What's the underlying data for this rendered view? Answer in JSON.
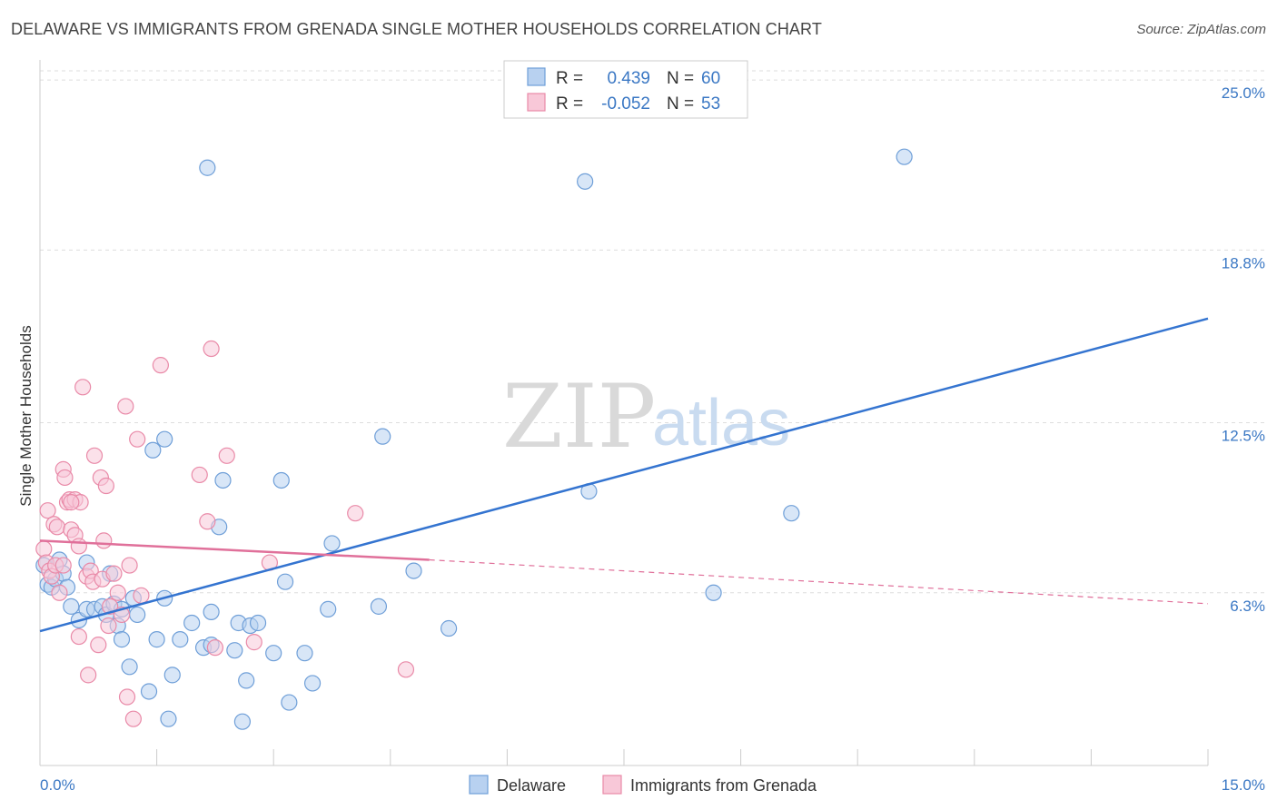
{
  "header": {
    "title": "DELAWARE VS IMMIGRANTS FROM GRENADA SINGLE MOTHER HOUSEHOLDS CORRELATION CHART",
    "source": "Source: ZipAtlas.com"
  },
  "watermark": {
    "zip": "ZIP",
    "atlas": "atlas"
  },
  "colors": {
    "delaware_fill": "#b8d1f0",
    "delaware_stroke": "#6f9fd8",
    "delaware_line": "#3474d0",
    "grenada_fill": "#f8c8d8",
    "grenada_stroke": "#e98aa8",
    "grenada_line": "#e0709a",
    "tick_color": "#3b78c4",
    "grid": "#dddddd"
  },
  "legend": {
    "rows": [
      {
        "r_label": "R =",
        "r_value": "0.439",
        "n_label": "N =",
        "n_value": "60"
      },
      {
        "r_label": "R =",
        "r_value": "-0.052",
        "n_label": "N =",
        "n_value": "53"
      }
    ]
  },
  "bottom_legend": [
    "Delaware",
    "Immigrants from Grenada"
  ],
  "chart_data": {
    "type": "scatter",
    "title": "DELAWARE VS IMMIGRANTS FROM GRENADA SINGLE MOTHER HOUSEHOLDS CORRELATION CHART",
    "xlabel": "",
    "ylabel": "Single Mother Households",
    "xlim": [
      0,
      15
    ],
    "ylim": [
      0,
      25.6
    ],
    "x_tick_labels": [
      "0.0%",
      "15.0%"
    ],
    "y_ticks": [
      6.3,
      12.5,
      18.8,
      25.0
    ],
    "y_tick_labels": [
      "6.3%",
      "12.5%",
      "18.8%",
      "25.0%"
    ],
    "grid": "horizontal dashed",
    "legend_placement": "top-center",
    "series": [
      {
        "name": "Delaware",
        "r": 0.439,
        "n": 60,
        "trend": {
          "x": [
            0,
            15
          ],
          "y": [
            4.9,
            16.3
          ]
        },
        "points": [
          [
            0.1,
            6.6
          ],
          [
            0.15,
            6.5
          ],
          [
            0.2,
            6.8
          ],
          [
            0.25,
            7.5
          ],
          [
            0.3,
            7.0
          ],
          [
            0.4,
            5.8
          ],
          [
            0.5,
            5.3
          ],
          [
            0.6,
            7.4
          ],
          [
            0.6,
            5.7
          ],
          [
            0.7,
            5.7
          ],
          [
            0.8,
            5.8
          ],
          [
            0.85,
            5.5
          ],
          [
            0.9,
            7.0
          ],
          [
            0.95,
            5.9
          ],
          [
            1.0,
            5.1
          ],
          [
            1.05,
            4.6
          ],
          [
            1.15,
            3.6
          ],
          [
            1.2,
            6.1
          ],
          [
            1.25,
            5.5
          ],
          [
            1.4,
            2.7
          ],
          [
            1.45,
            11.5
          ],
          [
            1.5,
            4.6
          ],
          [
            1.6,
            11.9
          ],
          [
            1.6,
            6.1
          ],
          [
            1.65,
            1.7
          ],
          [
            1.7,
            3.3
          ],
          [
            1.8,
            4.6
          ],
          [
            1.95,
            5.2
          ],
          [
            2.1,
            4.3
          ],
          [
            2.15,
            21.8
          ],
          [
            2.2,
            4.4
          ],
          [
            2.2,
            5.6
          ],
          [
            2.3,
            8.7
          ],
          [
            2.35,
            10.4
          ],
          [
            2.5,
            4.2
          ],
          [
            2.55,
            5.2
          ],
          [
            2.6,
            1.6
          ],
          [
            2.65,
            3.1
          ],
          [
            2.7,
            5.1
          ],
          [
            2.8,
            5.2
          ],
          [
            3.0,
            4.1
          ],
          [
            3.1,
            10.4
          ],
          [
            3.15,
            6.7
          ],
          [
            3.2,
            2.3
          ],
          [
            3.4,
            4.1
          ],
          [
            3.5,
            3.0
          ],
          [
            3.75,
            8.1
          ],
          [
            3.7,
            5.7
          ],
          [
            4.35,
            5.8
          ],
          [
            4.4,
            12.0
          ],
          [
            4.8,
            7.1
          ],
          [
            5.25,
            5.0
          ],
          [
            7.0,
            21.3
          ],
          [
            7.05,
            10.0
          ],
          [
            8.65,
            6.3
          ],
          [
            9.65,
            9.2
          ],
          [
            11.1,
            22.2
          ],
          [
            0.05,
            7.3
          ],
          [
            0.35,
            6.5
          ],
          [
            1.05,
            5.7
          ]
        ]
      },
      {
        "name": "Immigrants from Grenada",
        "r": -0.052,
        "n": 53,
        "trend": {
          "x": [
            0,
            5.0
          ],
          "y": [
            8.2,
            7.5
          ]
        },
        "trend_dashed": {
          "x": [
            5.0,
            15
          ],
          "y": [
            7.5,
            5.9
          ]
        },
        "points": [
          [
            0.05,
            7.9
          ],
          [
            0.08,
            7.4
          ],
          [
            0.1,
            9.3
          ],
          [
            0.12,
            7.1
          ],
          [
            0.15,
            6.9
          ],
          [
            0.18,
            8.8
          ],
          [
            0.2,
            7.3
          ],
          [
            0.22,
            8.7
          ],
          [
            0.25,
            6.3
          ],
          [
            0.3,
            7.3
          ],
          [
            0.3,
            10.8
          ],
          [
            0.32,
            10.5
          ],
          [
            0.35,
            9.6
          ],
          [
            0.38,
            9.7
          ],
          [
            0.4,
            8.6
          ],
          [
            0.45,
            8.4
          ],
          [
            0.45,
            9.7
          ],
          [
            0.5,
            8.0
          ],
          [
            0.52,
            9.6
          ],
          [
            0.5,
            4.7
          ],
          [
            0.55,
            13.8
          ],
          [
            0.6,
            6.9
          ],
          [
            0.62,
            3.3
          ],
          [
            0.65,
            7.1
          ],
          [
            0.68,
            6.7
          ],
          [
            0.7,
            11.3
          ],
          [
            0.75,
            4.4
          ],
          [
            0.78,
            10.5
          ],
          [
            0.8,
            6.8
          ],
          [
            0.82,
            8.2
          ],
          [
            0.85,
            10.2
          ],
          [
            0.88,
            5.1
          ],
          [
            0.9,
            5.8
          ],
          [
            0.95,
            7.0
          ],
          [
            1.0,
            6.3
          ],
          [
            1.05,
            5.5
          ],
          [
            1.1,
            13.1
          ],
          [
            1.12,
            2.5
          ],
          [
            1.15,
            7.3
          ],
          [
            1.2,
            1.7
          ],
          [
            1.25,
            11.9
          ],
          [
            1.3,
            6.2
          ],
          [
            1.55,
            14.6
          ],
          [
            2.05,
            10.6
          ],
          [
            2.15,
            8.9
          ],
          [
            2.2,
            15.2
          ],
          [
            2.25,
            4.3
          ],
          [
            2.4,
            11.3
          ],
          [
            2.75,
            4.5
          ],
          [
            2.95,
            7.4
          ],
          [
            4.05,
            9.2
          ],
          [
            4.7,
            3.5
          ],
          [
            0.4,
            9.6
          ]
        ]
      }
    ]
  }
}
